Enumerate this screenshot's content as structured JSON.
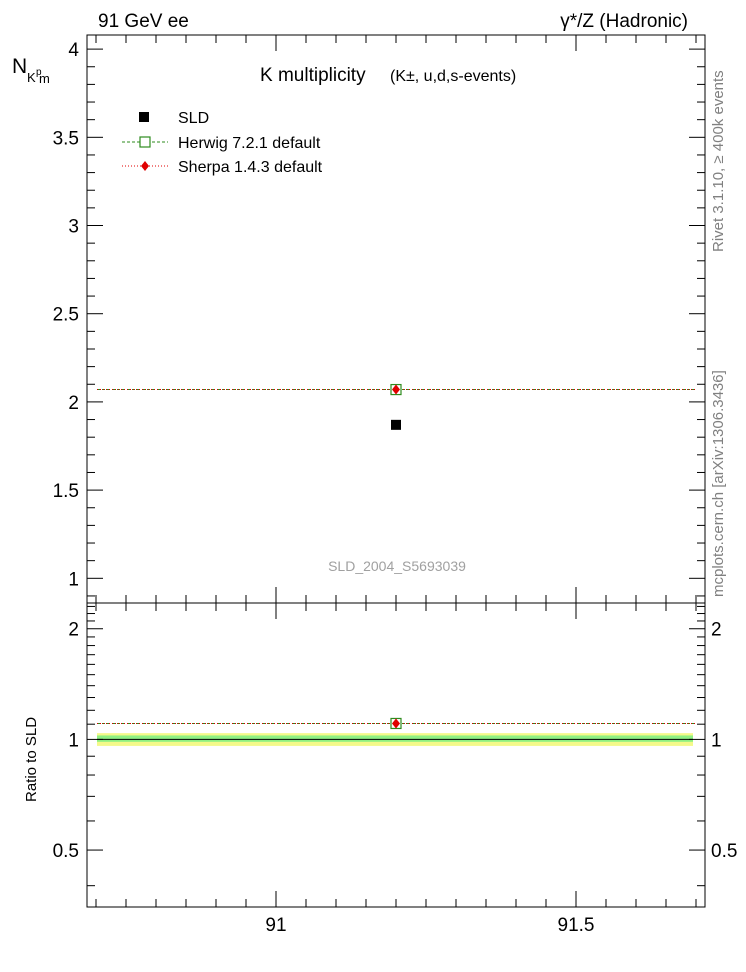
{
  "header": {
    "left_label": "91 GeV ee",
    "right_label": "γ*/Z (Hadronic)"
  },
  "side_labels": {
    "rivet": "Rivet 3.1.10, ≥ 400k events",
    "mcplots": "mcplots.cern.ch [arXiv:1306.3436]"
  },
  "chart_data": [
    {
      "type": "scatter",
      "panel": "main",
      "title": "K multiplicity",
      "subtitle": "(K±, u,d,s-events)",
      "ylabel_main": "N",
      "ylabel_sub": "K",
      "ylabel_sup": "p",
      "ylabel_sub2": "m",
      "xlabel": "",
      "analysis_id": "SLD_2004_S5693039",
      "xlim": [
        90.685,
        91.715
      ],
      "ylim": [
        0.86,
        4.08
      ],
      "yticks": [
        1,
        1.5,
        2,
        2.5,
        3,
        3.5,
        4
      ],
      "ytick_labels": [
        "1",
        "1.5",
        "2",
        "2.5",
        "3",
        "3.5",
        "4"
      ],
      "legend_position": "top-left",
      "series": [
        {
          "name": "SLD",
          "x": [
            91.2
          ],
          "y": [
            1.87
          ],
          "color": "#000000",
          "marker": "square-filled"
        },
        {
          "name": "Herwig 7.2.1 default",
          "x": [
            91.2
          ],
          "y": [
            2.07
          ],
          "xrange": [
            90.685,
            91.715
          ],
          "color": "#2e8b1e",
          "marker": "square-open",
          "line": "dashed"
        },
        {
          "name": "Sherpa 1.4.3 default",
          "x": [
            91.2
          ],
          "y": [
            2.07
          ],
          "xrange": [
            90.685,
            91.715
          ],
          "color": "#e00000",
          "marker": "diamond-filled",
          "line": "dotted"
        }
      ]
    },
    {
      "type": "scatter",
      "panel": "ratio",
      "ylabel": "Ratio to SLD",
      "xlim": [
        90.685,
        91.715
      ],
      "ylim": [
        0.35,
        2.35
      ],
      "yticks": [
        0.5,
        1,
        2
      ],
      "ytick_labels": [
        "0.5",
        "1",
        "2"
      ],
      "xticks": [
        91,
        91.5
      ],
      "xtick_labels": [
        "91",
        "91.5"
      ],
      "bands": [
        {
          "name": "SLD total uncertainty",
          "low": 0.96,
          "high": 1.04,
          "color": "#f4f98a"
        },
        {
          "name": "SLD stat uncertainty",
          "low": 0.985,
          "high": 1.025,
          "color": "#8ff082"
        }
      ],
      "series": [
        {
          "name": "Herwig 7.2.1 default",
          "x": [
            91.2
          ],
          "y": [
            1.105
          ],
          "color": "#2e8b1e",
          "marker": "square-open",
          "line": "dashed"
        },
        {
          "name": "Sherpa 1.4.3 default",
          "x": [
            91.2
          ],
          "y": [
            1.105
          ],
          "color": "#e00000",
          "marker": "diamond-filled",
          "line": "dotted"
        }
      ]
    }
  ]
}
